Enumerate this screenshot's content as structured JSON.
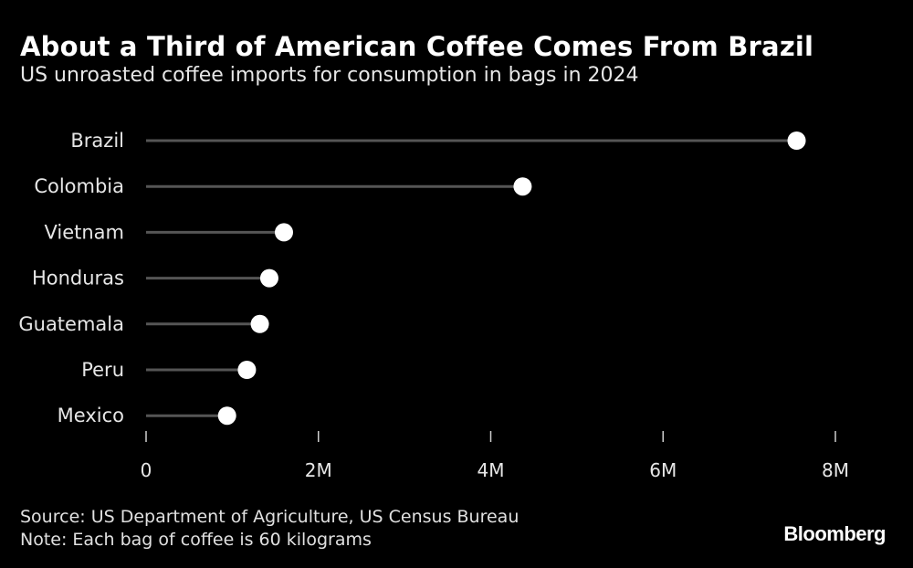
{
  "title": "About a Third of American Coffee Comes From Brazil",
  "subtitle": "US unroasted coffee imports for consumption in bags in 2024",
  "source": "Source: US Department of Agriculture, US Census Bureau",
  "note": "Note: Each bag of coffee is 60 kilograms",
  "brand": "Bloomberg",
  "colors": {
    "background": "#000000",
    "line": "#555555",
    "dot": "#ffffff",
    "text": "#e6e6e6",
    "tick": "#cfcfcf"
  },
  "chart_data": {
    "type": "lollipop",
    "categories": [
      "Brazil",
      "Colombia",
      "Vietnam",
      "Honduras",
      "Guatemala",
      "Peru",
      "Mexico"
    ],
    "values": [
      7550000,
      4370000,
      1600000,
      1430000,
      1320000,
      1170000,
      940000
    ],
    "xlim": [
      0,
      8000000
    ],
    "xticks": [
      0,
      2000000,
      4000000,
      6000000,
      8000000
    ],
    "xtick_labels": [
      "0",
      "2M",
      "4M",
      "6M",
      "8M"
    ],
    "title": "About a Third of American Coffee Comes From Brazil",
    "xlabel": "",
    "ylabel": ""
  }
}
